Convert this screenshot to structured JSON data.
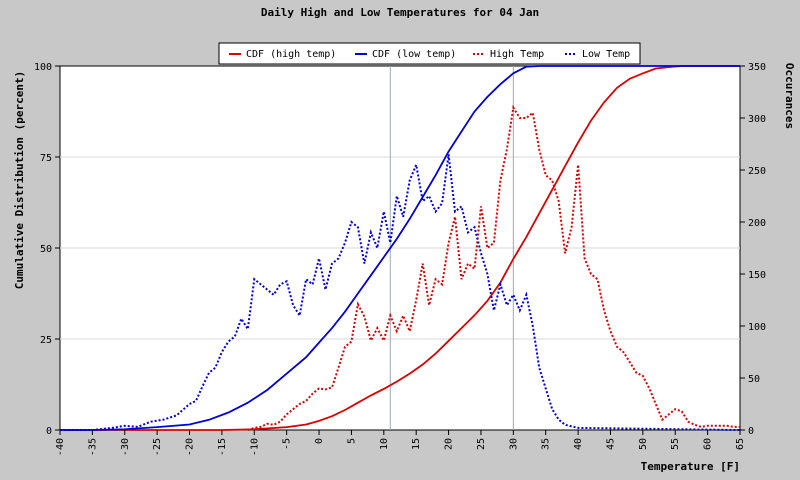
{
  "chart_data": {
    "type": "line",
    "title": "Daily High and Low Temperatures for 04 Jan",
    "xlabel": "Temperature [F]",
    "ylabel": "Cumulative Distribution (percent)",
    "y2label": "Occurances",
    "xlim": [
      -40,
      65
    ],
    "ylim": [
      0,
      100
    ],
    "y2lim": [
      0,
      350
    ],
    "xticks": [
      -40,
      -35,
      -30,
      -25,
      -20,
      -15,
      -10,
      -5,
      0,
      5,
      10,
      15,
      20,
      25,
      30,
      35,
      40,
      45,
      50,
      55,
      60,
      65
    ],
    "yticks": [
      0,
      25,
      50,
      75,
      100
    ],
    "y2ticks": [
      0,
      50,
      100,
      150,
      200,
      250,
      300,
      350
    ],
    "grid": true,
    "legend_position": "top",
    "marker_lines_x": [
      11,
      30
    ],
    "colors": {
      "high": "#dd0000",
      "low": "#0000dd",
      "background": "#c8c8c8",
      "plot_bg": "#ffffff",
      "grid": "#d9d9d9",
      "marker": "#9ab"
    },
    "series": [
      {
        "name": "CDF (high temp)",
        "axis": "left",
        "style": "solid",
        "color": "#dd0000",
        "x": [
          -40,
          -15,
          -10,
          -5,
          -2,
          0,
          2,
          4,
          6,
          8,
          10,
          12,
          14,
          16,
          18,
          20,
          22,
          24,
          26,
          28,
          30,
          32,
          34,
          36,
          38,
          40,
          42,
          44,
          46,
          48,
          50,
          52,
          54,
          56,
          60,
          65
        ],
        "y": [
          0,
          0,
          0.2,
          0.8,
          1.5,
          2.5,
          3.8,
          5.5,
          7.5,
          9.5,
          11.3,
          13.3,
          15.5,
          18,
          21,
          24.5,
          28,
          31.5,
          35.5,
          40.5,
          47,
          53,
          59.5,
          66,
          72.5,
          79,
          85,
          90,
          94,
          96.5,
          98,
          99.3,
          99.7,
          100,
          100,
          100
        ]
      },
      {
        "name": "CDF (low temp)",
        "axis": "left",
        "style": "solid",
        "color": "#0000dd",
        "x": [
          -40,
          -35,
          -30,
          -25,
          -20,
          -17,
          -14,
          -11,
          -8,
          -5,
          -2,
          0,
          2,
          4,
          6,
          8,
          10,
          12,
          14,
          16,
          18,
          20,
          22,
          24,
          26,
          28,
          30,
          32,
          34,
          36,
          40,
          65
        ],
        "y": [
          0,
          0,
          0.2,
          0.8,
          1.5,
          2.8,
          4.8,
          7.5,
          11,
          15.5,
          20,
          24,
          28,
          32.5,
          37.5,
          42.5,
          47.5,
          52.5,
          58,
          64,
          70,
          76.5,
          82,
          87.5,
          91.5,
          95,
          98,
          99.8,
          100,
          100,
          100,
          100
        ]
      },
      {
        "name": "High Temp",
        "axis": "right",
        "style": "dotted",
        "color": "#dd0000",
        "x": [
          -11,
          -10,
          -9,
          -8,
          -7,
          -6,
          -5,
          -4,
          -3,
          -2,
          -1,
          0,
          1,
          2,
          3,
          4,
          5,
          6,
          7,
          8,
          9,
          10,
          11,
          12,
          13,
          14,
          15,
          16,
          17,
          18,
          19,
          20,
          21,
          22,
          23,
          24,
          25,
          26,
          27,
          28,
          29,
          30,
          31,
          32,
          33,
          34,
          35,
          36,
          37,
          38,
          39,
          40,
          41,
          42,
          43,
          44,
          45,
          46,
          47,
          48,
          49,
          50,
          51,
          52,
          53,
          54,
          55,
          56,
          57,
          58,
          59,
          60,
          61,
          62,
          63,
          64,
          65
        ],
        "y": [
          0,
          2,
          3,
          6,
          5,
          8,
          15,
          20,
          25,
          28,
          35,
          40,
          39,
          41,
          60,
          80,
          85,
          121,
          109,
          86,
          98,
          86,
          110,
          95,
          110,
          95,
          125,
          160,
          120,
          145,
          140,
          180,
          205,
          145,
          160,
          155,
          215,
          175,
          180,
          240,
          270,
          310,
          300,
          300,
          305,
          270,
          245,
          240,
          220,
          170,
          195,
          255,
          165,
          150,
          145,
          115,
          95,
          80,
          75,
          65,
          55,
          52,
          40,
          25,
          10,
          15,
          20,
          18,
          8,
          5,
          3,
          4,
          4,
          4,
          4,
          3,
          3
        ]
      },
      {
        "name": "Low Temp",
        "axis": "right",
        "style": "dotted",
        "color": "#0000dd",
        "x": [
          -40,
          -35,
          -32,
          -30,
          -28,
          -26,
          -24,
          -22,
          -20,
          -19,
          -18,
          -17,
          -16,
          -15,
          -14,
          -13,
          -12,
          -11,
          -10,
          -9,
          -8,
          -7,
          -6,
          -5,
          -4,
          -3,
          -2,
          -1,
          0,
          1,
          2,
          3,
          4,
          5,
          6,
          7,
          8,
          9,
          10,
          11,
          12,
          13,
          14,
          15,
          16,
          17,
          18,
          19,
          20,
          21,
          22,
          23,
          24,
          25,
          26,
          27,
          28,
          29,
          30,
          31,
          32,
          33,
          34,
          35,
          36,
          37,
          38,
          40,
          65
        ],
        "y": [
          0,
          0,
          2,
          4,
          3,
          8,
          10,
          14,
          25,
          28,
          42,
          55,
          60,
          75,
          85,
          90,
          107,
          97,
          145,
          140,
          135,
          130,
          140,
          143,
          120,
          110,
          145,
          140,
          165,
          135,
          160,
          165,
          180,
          200,
          195,
          160,
          190,
          175,
          210,
          180,
          225,
          205,
          240,
          255,
          220,
          225,
          210,
          218,
          265,
          210,
          215,
          190,
          195,
          170,
          150,
          115,
          140,
          120,
          130,
          115,
          130,
          100,
          60,
          40,
          20,
          10,
          5,
          2,
          0
        ]
      }
    ]
  }
}
